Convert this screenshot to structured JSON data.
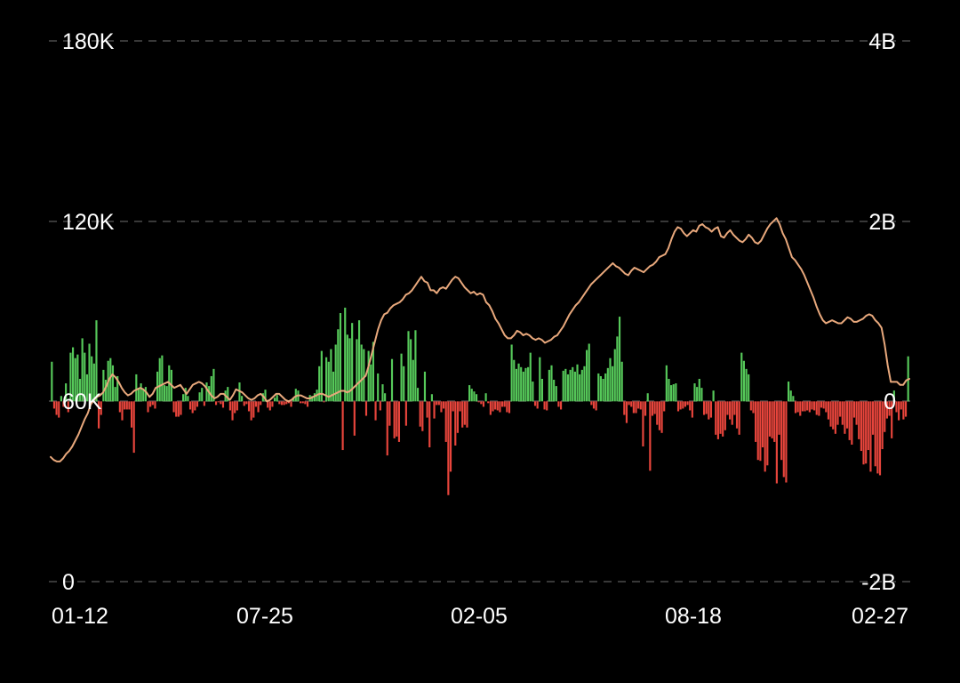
{
  "colors": {
    "background": "#000000",
    "grid": "#4a4a4a",
    "positive": "#56c95a",
    "negative": "#e8453c",
    "line": "#e8a87c",
    "text": "#ffffff"
  },
  "chart_data": {
    "type": "bar",
    "title": "",
    "xlabel": "",
    "ylabel": "",
    "x_tick_labels": [
      "01-12",
      "07-25",
      "02-05",
      "08-18",
      "02-27"
    ],
    "left_axis": {
      "ticks": [
        "180K",
        "120K",
        "60K",
        "0"
      ],
      "tick_values": [
        180000,
        120000,
        60000,
        0
      ],
      "range": [
        0,
        180000
      ]
    },
    "right_axis": {
      "ticks": [
        "4B",
        "2B",
        "0",
        "-2B"
      ],
      "tick_values": [
        4000000000,
        2000000000,
        0,
        -2000000000
      ],
      "range": [
        -2000000000,
        4000000000
      ]
    },
    "grid": true,
    "series": [
      {
        "type": "line",
        "axis": "left",
        "values": [
          41500,
          40500,
          40000,
          40000,
          41000,
          42500,
          43500,
          45000,
          47000,
          49000,
          51500,
          54000,
          56000,
          59000,
          60500,
          61500,
          62000,
          63000,
          65000,
          67500,
          69000,
          68000,
          66500,
          64500,
          63000,
          62000,
          62500,
          63500,
          64000,
          64500,
          64000,
          63000,
          61500,
          62500,
          64500,
          65000,
          65500,
          66000,
          66500,
          65500,
          64500,
          65000,
          65500,
          64000,
          62500,
          64000,
          65500,
          66000,
          66500,
          66000,
          65000,
          63500,
          62000,
          61000,
          61500,
          62500,
          62500,
          61500,
          60500,
          62000,
          64000,
          63500,
          63000,
          62000,
          61000,
          60500,
          61000,
          62000,
          62500,
          61500,
          60000,
          60500,
          61500,
          62500,
          62500,
          61500,
          60500,
          60000,
          60500,
          61500,
          62000,
          62000,
          61500,
          61000,
          61000,
          61500,
          62000,
          62500,
          62500,
          62000,
          61500,
          62000,
          62500,
          63000,
          63500,
          63500,
          63000,
          63500,
          64500,
          65500,
          66500,
          67500,
          68500,
          72000,
          76000,
          80000,
          84000,
          87000,
          89000,
          89500,
          91000,
          92000,
          92500,
          93000,
          94000,
          95500,
          96000,
          97000,
          98500,
          100000,
          101500,
          100000,
          99500,
          97000,
          97000,
          96000,
          97500,
          98000,
          97500,
          99000,
          100500,
          101500,
          101000,
          99500,
          98000,
          97000,
          96000,
          96500,
          95500,
          96000,
          95500,
          93000,
          92000,
          90000,
          87500,
          86000,
          84000,
          82000,
          81000,
          81000,
          82000,
          83500,
          83000,
          82000,
          82500,
          82000,
          81000,
          80500,
          81000,
          80500,
          79500,
          80000,
          80500,
          81500,
          82000,
          83500,
          85000,
          87000,
          89000,
          90500,
          92000,
          93000,
          94500,
          96000,
          97500,
          99000,
          100000,
          101000,
          102000,
          103000,
          104000,
          105000,
          106000,
          105000,
          104500,
          103500,
          102500,
          102000,
          103500,
          104500,
          104000,
          103500,
          103000,
          104000,
          105000,
          105500,
          106500,
          108000,
          108500,
          109000,
          111000,
          114000,
          116500,
          118000,
          117500,
          116000,
          115000,
          116000,
          117000,
          116500,
          118500,
          119000,
          118000,
          117500,
          116500,
          117500,
          118000,
          115000,
          114500,
          116000,
          117000,
          115500,
          114500,
          113500,
          113000,
          114000,
          115500,
          114500,
          113000,
          112500,
          113500,
          115500,
          117500,
          119000,
          120000,
          121000,
          119000,
          116000,
          114000,
          111000,
          108000,
          107000,
          105500,
          104000,
          102000,
          99500,
          97000,
          94500,
          91500,
          89000,
          87000,
          86000,
          86500,
          87000,
          86500,
          86000,
          86000,
          87000,
          88000,
          87500,
          86500,
          86500,
          87000,
          87500,
          88500,
          89000,
          88500,
          87000,
          86000,
          84500,
          79000,
          72000,
          66500,
          66500,
          66500,
          65500,
          65500,
          67000,
          67500
        ]
      },
      {
        "type": "bar",
        "axis": "right",
        "color_positive": "#56c95a",
        "color_negative": "#e8453c",
        "values": [
          440000000,
          -80000000,
          -150000000,
          -180000000,
          60000000,
          -60000000,
          200000000,
          -120000000,
          540000000,
          600000000,
          480000000,
          520000000,
          250000000,
          700000000,
          540000000,
          300000000,
          640000000,
          500000000,
          420000000,
          900000000,
          -300000000,
          -150000000,
          350000000,
          240000000,
          450000000,
          480000000,
          400000000,
          160000000,
          280000000,
          -120000000,
          -210000000,
          -90000000,
          -90000000,
          -90000000,
          -290000000,
          -570000000,
          300000000,
          150000000,
          200000000,
          130000000,
          160000000,
          -120000000,
          -60000000,
          -40000000,
          -80000000,
          330000000,
          480000000,
          510000000,
          180000000,
          170000000,
          400000000,
          350000000,
          -120000000,
          -170000000,
          -170000000,
          -150000000,
          80000000,
          150000000,
          60000000,
          -90000000,
          -130000000,
          -100000000,
          -60000000,
          100000000,
          150000000,
          -50000000,
          210000000,
          170000000,
          280000000,
          360000000,
          -40000000,
          -10000000,
          -30000000,
          -70000000,
          120000000,
          160000000,
          -100000000,
          -210000000,
          -130000000,
          -100000000,
          210000000,
          60000000,
          -50000000,
          -30000000,
          -110000000,
          -210000000,
          -180000000,
          -60000000,
          -120000000,
          -40000000,
          90000000,
          130000000,
          -70000000,
          -100000000,
          -60000000,
          40000000,
          70000000,
          -30000000,
          -40000000,
          -40000000,
          -30000000,
          -20000000,
          -60000000,
          40000000,
          140000000,
          120000000,
          -20000000,
          -20000000,
          -30000000,
          -60000000,
          70000000,
          60000000,
          90000000,
          130000000,
          390000000,
          560000000,
          -10000000,
          490000000,
          440000000,
          580000000,
          330000000,
          630000000,
          800000000,
          980000000,
          -540000000,
          1040000000,
          740000000,
          700000000,
          870000000,
          -380000000,
          690000000,
          900000000,
          630000000,
          580000000,
          -160000000,
          560000000,
          410000000,
          660000000,
          -210000000,
          310000000,
          -100000000,
          190000000,
          90000000,
          -600000000,
          -270000000,
          470000000,
          -410000000,
          -390000000,
          -450000000,
          530000000,
          390000000,
          -270000000,
          780000000,
          690000000,
          460000000,
          790000000,
          150000000,
          -280000000,
          -330000000,
          330000000,
          -180000000,
          -510000000,
          80000000,
          -190000000,
          -40000000,
          -40000000,
          -120000000,
          -80000000,
          -450000000,
          -1040000000,
          -780000000,
          -110000000,
          -490000000,
          -350000000,
          -110000000,
          -290000000,
          -260000000,
          -290000000,
          180000000,
          140000000,
          110000000,
          80000000,
          -10000000,
          -30000000,
          -60000000,
          90000000,
          -20000000,
          -150000000,
          -110000000,
          -90000000,
          -100000000,
          -120000000,
          -60000000,
          -60000000,
          -120000000,
          -130000000,
          630000000,
          460000000,
          360000000,
          420000000,
          380000000,
          330000000,
          370000000,
          380000000,
          540000000,
          220000000,
          -50000000,
          -80000000,
          490000000,
          250000000,
          -90000000,
          -100000000,
          350000000,
          400000000,
          240000000,
          170000000,
          -60000000,
          -90000000,
          340000000,
          360000000,
          300000000,
          350000000,
          380000000,
          330000000,
          410000000,
          300000000,
          350000000,
          390000000,
          570000000,
          640000000,
          -40000000,
          -80000000,
          -100000000,
          310000000,
          280000000,
          250000000,
          310000000,
          370000000,
          480000000,
          390000000,
          580000000,
          720000000,
          940000000,
          440000000,
          -150000000,
          -240000000,
          -40000000,
          -60000000,
          -130000000,
          -130000000,
          -80000000,
          -90000000,
          -500000000,
          -160000000,
          90000000,
          -770000000,
          -160000000,
          -140000000,
          -260000000,
          -320000000,
          -350000000,
          -110000000,
          400000000,
          250000000,
          180000000,
          190000000,
          200000000,
          -110000000,
          -90000000,
          -80000000,
          -60000000,
          -40000000,
          -100000000,
          -180000000,
          200000000,
          160000000,
          250000000,
          150000000,
          -150000000,
          -140000000,
          -200000000,
          -180000000,
          120000000,
          -370000000,
          -420000000,
          -360000000,
          -390000000,
          -320000000,
          -150000000,
          -200000000,
          -260000000,
          -150000000,
          -300000000,
          -370000000,
          540000000,
          450000000,
          360000000,
          300000000,
          -100000000,
          -130000000,
          -450000000,
          -650000000,
          -660000000,
          -510000000,
          -780000000,
          -710000000,
          -390000000,
          -410000000,
          -450000000,
          -910000000,
          -370000000,
          -650000000,
          -840000000,
          -900000000,
          220000000,
          120000000,
          60000000,
          -130000000,
          -120000000,
          -160000000,
          -110000000,
          -110000000,
          -100000000,
          -120000000,
          -90000000,
          -100000000,
          -150000000,
          -160000000,
          -70000000,
          -80000000,
          -120000000,
          -200000000,
          -280000000,
          -310000000,
          -360000000,
          -260000000,
          -170000000,
          -260000000,
          -360000000,
          -300000000,
          -430000000,
          -480000000,
          -180000000,
          -260000000,
          -420000000,
          -550000000,
          -700000000,
          -690000000,
          -540000000,
          -780000000,
          -370000000,
          -720000000,
          -800000000,
          -820000000,
          -530000000,
          -340000000,
          -190000000,
          -160000000,
          -410000000,
          120000000,
          -120000000,
          -210000000,
          -90000000,
          -200000000,
          -170000000,
          500000000
        ]
      }
    ]
  }
}
